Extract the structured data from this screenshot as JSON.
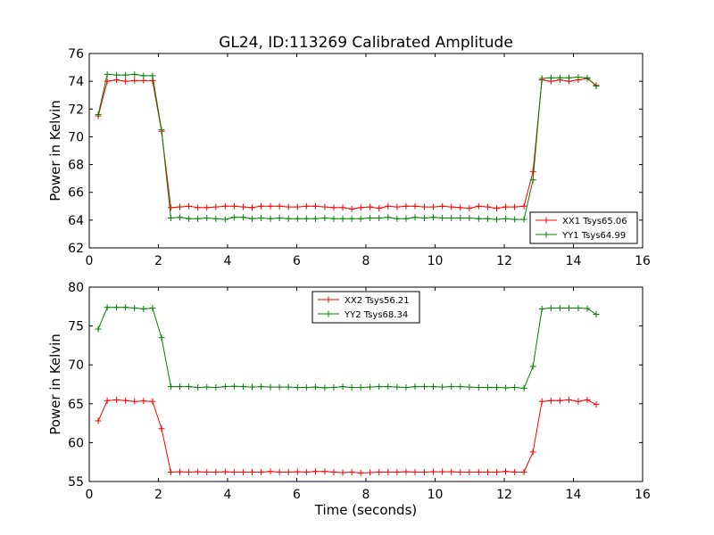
{
  "chart_data": [
    {
      "type": "line",
      "title": "GL24, ID:113269 Calibrated Amplitude",
      "xlabel": "",
      "ylabel": "Power in Kelvin",
      "xlim": [
        0,
        16
      ],
      "ylim": [
        62,
        76
      ],
      "xticks": [
        "0",
        "2",
        "4",
        "6",
        "8",
        "10",
        "12",
        "14",
        "16"
      ],
      "yticks": [
        "62",
        "64",
        "66",
        "68",
        "70",
        "72",
        "74",
        "76"
      ],
      "legend_position": "lower-right",
      "grid": false,
      "series": [
        {
          "name": "XX1 Tsys65.06",
          "color": "#ff0000",
          "x": [
            0.26,
            0.52,
            0.79,
            1.05,
            1.31,
            1.57,
            1.83,
            2.09,
            2.36,
            2.62,
            2.88,
            3.14,
            3.4,
            3.66,
            3.93,
            4.19,
            4.45,
            4.71,
            4.97,
            5.24,
            5.5,
            5.76,
            6.02,
            6.28,
            6.54,
            6.81,
            7.07,
            7.33,
            7.59,
            7.85,
            8.12,
            8.38,
            8.64,
            8.9,
            9.16,
            9.42,
            9.69,
            9.95,
            10.21,
            10.47,
            10.73,
            10.99,
            11.26,
            11.52,
            11.78,
            12.04,
            12.3,
            12.57,
            12.83,
            13.09,
            13.35,
            13.61,
            13.87,
            14.14,
            14.4,
            14.66
          ],
          "y": [
            71.5,
            74.0,
            74.1,
            74.0,
            74.05,
            74.05,
            74.05,
            70.4,
            64.9,
            64.95,
            65.0,
            64.9,
            64.9,
            64.95,
            65.0,
            65.0,
            64.95,
            64.9,
            65.0,
            65.0,
            65.0,
            64.95,
            64.95,
            65.0,
            65.0,
            64.95,
            64.9,
            64.9,
            64.8,
            64.9,
            64.95,
            64.85,
            65.0,
            64.95,
            65.0,
            65.0,
            64.95,
            64.95,
            65.0,
            64.95,
            64.9,
            64.85,
            65.0,
            64.95,
            64.85,
            64.95,
            64.95,
            65.0,
            67.5,
            74.1,
            74.0,
            74.1,
            74.0,
            74.1,
            74.2,
            73.7
          ]
        },
        {
          "name": "YY1 Tsys64.99",
          "color": "#008000",
          "x": [
            0.26,
            0.52,
            0.79,
            1.05,
            1.31,
            1.57,
            1.83,
            2.09,
            2.36,
            2.62,
            2.88,
            3.14,
            3.4,
            3.66,
            3.93,
            4.19,
            4.45,
            4.71,
            4.97,
            5.24,
            5.5,
            5.76,
            6.02,
            6.28,
            6.54,
            6.81,
            7.07,
            7.33,
            7.59,
            7.85,
            8.12,
            8.38,
            8.64,
            8.9,
            9.16,
            9.42,
            9.69,
            9.95,
            10.21,
            10.47,
            10.73,
            10.99,
            11.26,
            11.52,
            11.78,
            12.04,
            12.3,
            12.57,
            12.83,
            13.09,
            13.35,
            13.61,
            13.87,
            14.14,
            14.4,
            14.66
          ],
          "y": [
            71.6,
            74.5,
            74.45,
            74.45,
            74.5,
            74.4,
            74.4,
            70.5,
            64.15,
            64.2,
            64.1,
            64.1,
            64.15,
            64.1,
            64.05,
            64.2,
            64.2,
            64.1,
            64.15,
            64.1,
            64.15,
            64.1,
            64.1,
            64.1,
            64.1,
            64.15,
            64.1,
            64.1,
            64.1,
            64.1,
            64.15,
            64.15,
            64.2,
            64.1,
            64.1,
            64.2,
            64.15,
            64.2,
            64.15,
            64.15,
            64.15,
            64.15,
            64.1,
            64.1,
            64.05,
            64.1,
            64.05,
            64.05,
            66.9,
            74.2,
            74.25,
            74.25,
            74.25,
            74.3,
            74.25,
            73.65
          ]
        }
      ]
    },
    {
      "type": "line",
      "title": "",
      "xlabel": "Time (seconds)",
      "ylabel": "Power in Kelvin",
      "xlim": [
        0,
        16
      ],
      "ylim": [
        55,
        80
      ],
      "xticks": [
        "0",
        "2",
        "4",
        "6",
        "8",
        "10",
        "12",
        "14",
        "16"
      ],
      "yticks": [
        "55",
        "60",
        "65",
        "70",
        "75",
        "80"
      ],
      "legend_position": "upper-center",
      "grid": false,
      "series": [
        {
          "name": "XX2 Tsys56.21",
          "color": "#ff0000",
          "x": [
            0.26,
            0.52,
            0.79,
            1.05,
            1.31,
            1.57,
            1.83,
            2.09,
            2.36,
            2.62,
            2.88,
            3.14,
            3.4,
            3.66,
            3.93,
            4.19,
            4.45,
            4.71,
            4.97,
            5.24,
            5.5,
            5.76,
            6.02,
            6.28,
            6.54,
            6.81,
            7.07,
            7.33,
            7.59,
            7.85,
            8.12,
            8.38,
            8.64,
            8.9,
            9.16,
            9.42,
            9.69,
            9.95,
            10.21,
            10.47,
            10.73,
            10.99,
            11.26,
            11.52,
            11.78,
            12.04,
            12.3,
            12.57,
            12.83,
            13.09,
            13.35,
            13.61,
            13.87,
            14.14,
            14.4,
            14.66
          ],
          "y": [
            62.8,
            65.4,
            65.5,
            65.4,
            65.3,
            65.35,
            65.3,
            61.8,
            56.2,
            56.25,
            56.2,
            56.25,
            56.2,
            56.2,
            56.25,
            56.2,
            56.2,
            56.2,
            56.2,
            56.3,
            56.2,
            56.2,
            56.25,
            56.2,
            56.3,
            56.3,
            56.2,
            56.15,
            56.2,
            56.1,
            56.15,
            56.2,
            56.2,
            56.2,
            56.25,
            56.2,
            56.2,
            56.25,
            56.25,
            56.25,
            56.2,
            56.2,
            56.2,
            56.2,
            56.2,
            56.3,
            56.2,
            56.2,
            58.8,
            65.3,
            65.4,
            65.4,
            65.5,
            65.3,
            65.5,
            64.9
          ]
        },
        {
          "name": "YY2 Tsys68.34",
          "color": "#008000",
          "x": [
            0.26,
            0.52,
            0.79,
            1.05,
            1.31,
            1.57,
            1.83,
            2.09,
            2.36,
            2.62,
            2.88,
            3.14,
            3.4,
            3.66,
            3.93,
            4.19,
            4.45,
            4.71,
            4.97,
            5.24,
            5.5,
            5.76,
            6.02,
            6.28,
            6.54,
            6.81,
            7.07,
            7.33,
            7.59,
            7.85,
            8.12,
            8.38,
            8.64,
            8.9,
            9.16,
            9.42,
            9.69,
            9.95,
            10.21,
            10.47,
            10.73,
            10.99,
            11.26,
            11.52,
            11.78,
            12.04,
            12.3,
            12.57,
            12.83,
            13.09,
            13.35,
            13.61,
            13.87,
            14.14,
            14.4,
            14.66
          ],
          "y": [
            74.6,
            77.4,
            77.4,
            77.4,
            77.3,
            77.2,
            77.3,
            73.5,
            67.2,
            67.2,
            67.2,
            67.1,
            67.15,
            67.1,
            67.2,
            67.25,
            67.2,
            67.15,
            67.2,
            67.15,
            67.15,
            67.15,
            67.1,
            67.1,
            67.15,
            67.05,
            67.1,
            67.2,
            67.1,
            67.1,
            67.15,
            67.2,
            67.2,
            67.15,
            67.1,
            67.2,
            67.2,
            67.2,
            67.15,
            67.2,
            67.2,
            67.15,
            67.1,
            67.1,
            67.1,
            67.05,
            67.1,
            67.0,
            69.8,
            77.2,
            77.3,
            77.3,
            77.3,
            77.3,
            77.25,
            76.5
          ]
        }
      ]
    }
  ]
}
